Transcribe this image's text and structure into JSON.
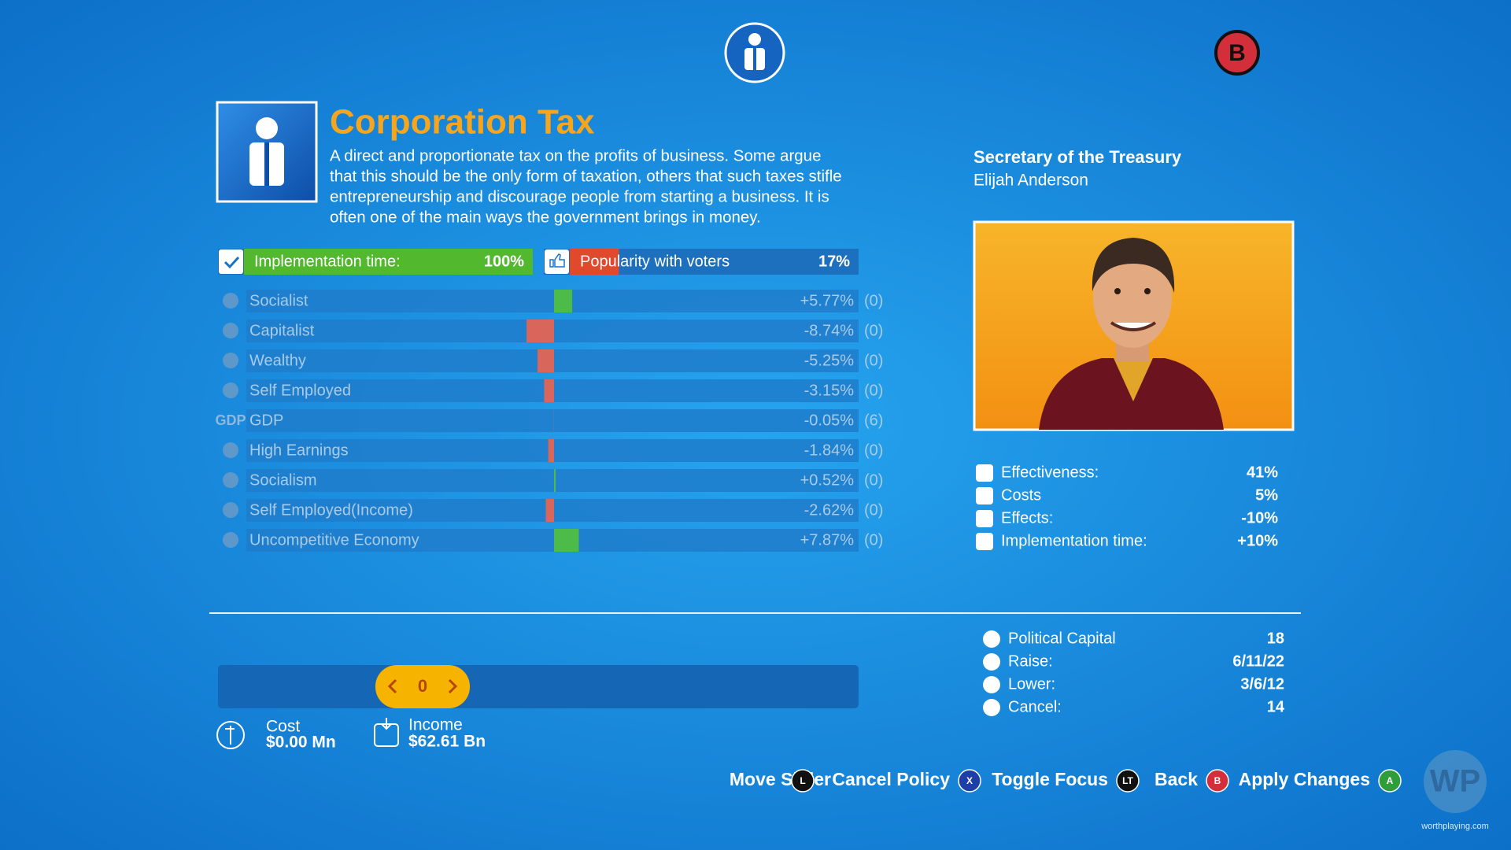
{
  "header": {
    "badge": "B"
  },
  "policy": {
    "title": "Corporation Tax",
    "description": [
      "A direct and proportionate tax on the profits of business. Some argue",
      "that this should be the only form of taxation, others that such taxes stifle",
      "entrepreneurship and discourage people from starting a business. It is",
      "often one of the main ways the government brings in money."
    ]
  },
  "implementation": {
    "label": "Implementation time:",
    "value": 100,
    "value_label": "100%"
  },
  "popularity": {
    "label": "Popularity with voters",
    "value": 17,
    "value_label": "17%"
  },
  "effects": [
    {
      "name": "Socialist",
      "value": 5.77,
      "value_label": "+5.77%",
      "delay": "(0)"
    },
    {
      "name": "Capitalist",
      "value": -8.74,
      "value_label": "-8.74%",
      "delay": "(0)"
    },
    {
      "name": "Wealthy",
      "value": -5.25,
      "value_label": "-5.25%",
      "delay": "(0)"
    },
    {
      "name": "Self Employed",
      "value": -3.15,
      "value_label": "-3.15%",
      "delay": "(0)"
    },
    {
      "name": "GDP",
      "icon_label": "GDP",
      "value": -0.05,
      "value_label": "-0.05%",
      "delay": "(6)"
    },
    {
      "name": "High Earnings",
      "value": -1.84,
      "value_label": "-1.84%",
      "delay": "(0)"
    },
    {
      "name": "Socialism",
      "value": 0.52,
      "value_label": "+0.52%",
      "delay": "(0)"
    },
    {
      "name": "Self Employed(Income)",
      "value": -2.62,
      "value_label": "-2.62%",
      "delay": "(0)"
    },
    {
      "name": "Uncompetitive Economy",
      "value": 7.87,
      "value_label": "+7.87%",
      "delay": "(0)"
    }
  ],
  "slider": {
    "value": 0
  },
  "cost": {
    "label": "Cost",
    "value": "$0.00 Mn"
  },
  "income": {
    "label": "Income",
    "value": "$62.61 Bn"
  },
  "minister": {
    "title": "Secretary of the Treasury",
    "name": "Elijah Anderson"
  },
  "modifiers": [
    {
      "label": "Effectiveness:",
      "value": "41%"
    },
    {
      "label": "Costs",
      "value": "5%"
    },
    {
      "label": "Effects:",
      "value": "-10%"
    },
    {
      "label": "Implementation time:",
      "value": "+10%"
    }
  ],
  "capital": [
    {
      "label": "Political Capital",
      "value": "18"
    },
    {
      "label": "Raise:",
      "value": "6/11/22"
    },
    {
      "label": "Lower:",
      "value": "3/6/12"
    },
    {
      "label": "Cancel:",
      "value": "14"
    }
  ],
  "controls": [
    {
      "label": "Move Slider",
      "button": "L"
    },
    {
      "label": "Cancel Policy",
      "button": "X"
    },
    {
      "label": "Toggle Focus",
      "button": "LT"
    },
    {
      "label": "Back",
      "button": "B"
    },
    {
      "label": "Apply Changes",
      "button": "A"
    }
  ],
  "watermark": {
    "logo": "WP",
    "site": "worthplaying.com"
  }
}
